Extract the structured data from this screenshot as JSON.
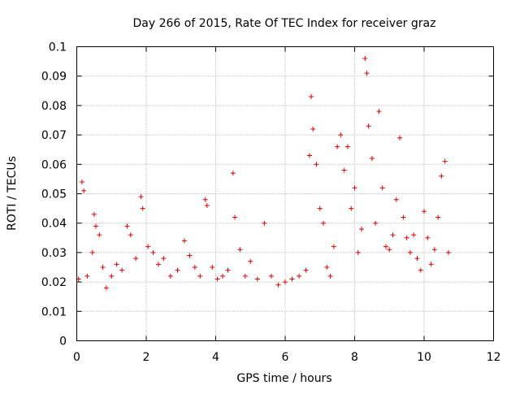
{
  "chart_data": {
    "type": "scatter",
    "title": "Day 266 of 2015, Rate Of TEC Index for receiver graz",
    "xlabel": "GPS time / hours",
    "ylabel": "ROTI / TECUs",
    "xlim": [
      0,
      12
    ],
    "ylim": [
      0,
      0.1
    ],
    "xticks": [
      0,
      2,
      4,
      6,
      8,
      10,
      12
    ],
    "xtick_labels": [
      "0",
      "2",
      "4",
      "6",
      "8",
      "10",
      "12"
    ],
    "yticks": [
      0,
      0.01,
      0.02,
      0.03,
      0.04,
      0.05,
      0.06,
      0.07,
      0.08,
      0.09,
      0.1
    ],
    "ytick_labels": [
      "0",
      "0.01",
      "0.02",
      "0.03",
      "0.04",
      "0.05",
      "0.06",
      "0.07",
      "0.08",
      "0.09",
      "0.1"
    ],
    "grid": true,
    "marker": "plus",
    "color": "#e00000",
    "series": [
      {
        "name": "ROTI",
        "x": [
          0.05,
          0.15,
          0.2,
          0.3,
          0.45,
          0.5,
          0.55,
          0.65,
          0.75,
          0.85,
          1.0,
          1.15,
          1.3,
          1.45,
          1.55,
          1.7,
          1.85,
          1.9,
          2.05,
          2.2,
          2.35,
          2.5,
          2.7,
          2.9,
          3.1,
          3.25,
          3.4,
          3.55,
          3.7,
          3.75,
          3.9,
          4.05,
          4.2,
          4.35,
          4.5,
          4.55,
          4.7,
          4.85,
          5.0,
          5.2,
          5.4,
          5.6,
          5.8,
          6.0,
          6.2,
          6.4,
          6.6,
          6.7,
          6.75,
          6.8,
          6.9,
          7.0,
          7.1,
          7.2,
          7.3,
          7.4,
          7.5,
          7.6,
          7.7,
          7.8,
          7.9,
          8.0,
          8.1,
          8.2,
          8.3,
          8.35,
          8.4,
          8.5,
          8.6,
          8.7,
          8.8,
          8.9,
          9.0,
          9.1,
          9.2,
          9.3,
          9.4,
          9.5,
          9.6,
          9.7,
          9.8,
          9.9,
          10.0,
          10.1,
          10.2,
          10.3,
          10.4,
          10.5,
          10.6,
          10.7
        ],
        "y": [
          0.021,
          0.054,
          0.051,
          0.022,
          0.03,
          0.043,
          0.039,
          0.036,
          0.025,
          0.018,
          0.022,
          0.026,
          0.024,
          0.039,
          0.036,
          0.028,
          0.049,
          0.045,
          0.032,
          0.03,
          0.026,
          0.028,
          0.022,
          0.024,
          0.034,
          0.029,
          0.025,
          0.022,
          0.048,
          0.046,
          0.025,
          0.021,
          0.022,
          0.024,
          0.057,
          0.042,
          0.031,
          0.022,
          0.027,
          0.021,
          0.04,
          0.022,
          0.019,
          0.02,
          0.021,
          0.022,
          0.024,
          0.063,
          0.083,
          0.072,
          0.06,
          0.045,
          0.04,
          0.025,
          0.022,
          0.032,
          0.066,
          0.07,
          0.058,
          0.066,
          0.045,
          0.052,
          0.03,
          0.038,
          0.096,
          0.091,
          0.073,
          0.062,
          0.04,
          0.078,
          0.052,
          0.032,
          0.031,
          0.036,
          0.048,
          0.069,
          0.042,
          0.035,
          0.03,
          0.036,
          0.028,
          0.024,
          0.044,
          0.035,
          0.026,
          0.031,
          0.042,
          0.056,
          0.061,
          0.03
        ]
      }
    ]
  }
}
